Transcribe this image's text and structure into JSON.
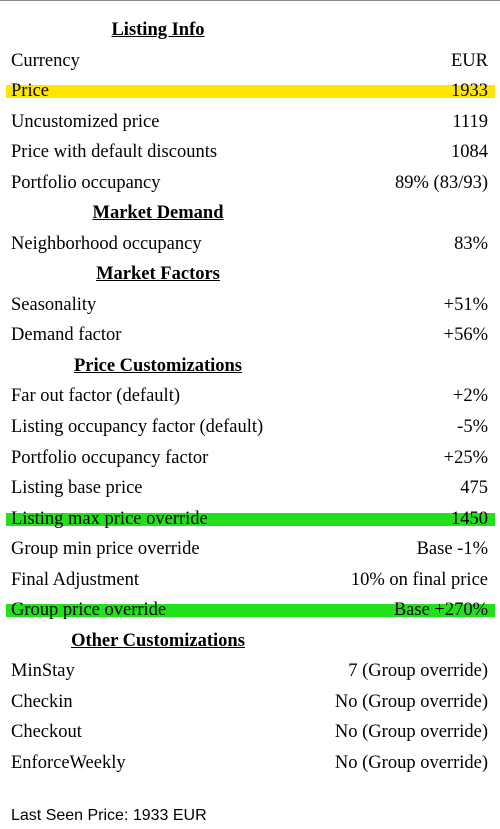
{
  "sections": [
    {
      "title": "Listing Info",
      "rows": [
        {
          "label": "Currency",
          "value": "EUR"
        },
        {
          "label": "Price",
          "value": "1933",
          "highlight": "#ffe500"
        },
        {
          "label": "Uncustomized price",
          "value": "1119"
        },
        {
          "label": "Price with default discounts",
          "value": "1084"
        },
        {
          "label": "Portfolio occupancy",
          "value": "89% (83/93)"
        }
      ]
    },
    {
      "title": "Market Demand",
      "rows": [
        {
          "label": "Neighborhood occupancy",
          "value": "83%"
        }
      ]
    },
    {
      "title": "Market Factors",
      "rows": [
        {
          "label": "Seasonality",
          "value": "+51%"
        },
        {
          "label": "Demand factor",
          "value": "+56%"
        }
      ]
    },
    {
      "title": "Price Customizations",
      "rows": [
        {
          "label": "Far out factor (default)",
          "value": "+2%"
        },
        {
          "label": "Listing occupancy factor (default)",
          "value": "-5%"
        },
        {
          "label": "Portfolio occupancy factor",
          "value": "+25%"
        },
        {
          "label": "Listing base price",
          "value": "475"
        },
        {
          "label": "Listing max price override",
          "value": "1450",
          "highlight": "#22e01a"
        },
        {
          "label": "Group min price override",
          "value": "Base -1%"
        },
        {
          "label": "Final Adjustment",
          "value": "10% on final price"
        },
        {
          "label": "Group price override",
          "value": "Base +270%",
          "highlight": "#22e01a"
        }
      ]
    },
    {
      "title": "Other Customizations",
      "rows": [
        {
          "label": "MinStay",
          "value": "7 (Group override)"
        },
        {
          "label": "Checkin",
          "value": "No (Group override)"
        },
        {
          "label": "Checkout",
          "value": "No (Group override)"
        },
        {
          "label": "EnforceWeekly",
          "value": "No (Group override)"
        }
      ]
    }
  ],
  "footer": "Last Seen Price: 1933 EUR"
}
